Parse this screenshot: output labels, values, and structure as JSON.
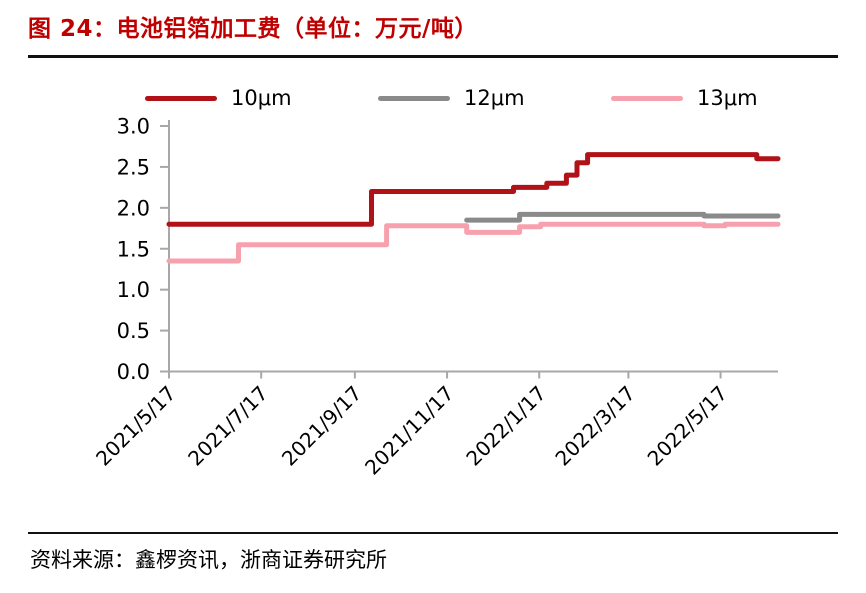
{
  "header": {
    "title": "图 24：电池铝箔加工费（单位：万元/吨）"
  },
  "footer": {
    "source": "资料来源：鑫椤资讯，浙商证券研究所"
  },
  "colors": {
    "title": "#C00000",
    "divider": "#111111",
    "axis": "#A8A8A8",
    "text": "#000000",
    "series_10um": "#B01218",
    "series_12um": "#8A8A8A",
    "series_13um": "#F8A1AE"
  },
  "chart_data": {
    "type": "line",
    "step": true,
    "title": "电池铝箔加工费",
    "unit": "万元/吨",
    "grid": false,
    "legend_position": "top",
    "ylim": [
      0.0,
      3.0
    ],
    "y_ticks": [
      "3.0",
      "2.5",
      "2.0",
      "1.5",
      "1.0",
      "0.5",
      "0.0"
    ],
    "x_domain": [
      "2021/5/17",
      "2022/6/24"
    ],
    "x_ticks": [
      "2021/5/17",
      "2021/7/17",
      "2021/9/17",
      "2021/11/17",
      "2022/1/17",
      "2022/3/17",
      "2022/5/17"
    ],
    "series": [
      {
        "name": "10μm",
        "key": "10um",
        "color": "#B01218",
        "points": [
          [
            "2021/5/17",
            1.8
          ],
          [
            "2021/9/28",
            2.2
          ],
          [
            "2021/12/31",
            2.25
          ],
          [
            "2022/1/22",
            2.3
          ],
          [
            "2022/2/4",
            2.4
          ],
          [
            "2022/2/11",
            2.55
          ],
          [
            "2022/2/18",
            2.65
          ],
          [
            "2022/6/10",
            2.6
          ],
          [
            "2022/6/24",
            2.6
          ]
        ]
      },
      {
        "name": "12μm",
        "key": "12um",
        "color": "#8A8A8A",
        "points": [
          [
            "2021/11/30",
            1.85
          ],
          [
            "2022/1/4",
            1.92
          ],
          [
            "2022/5/6",
            1.9
          ],
          [
            "2022/6/24",
            1.9
          ]
        ]
      },
      {
        "name": "13μm",
        "key": "13um",
        "color": "#F8A1AE",
        "points": [
          [
            "2021/5/17",
            1.35
          ],
          [
            "2021/7/2",
            1.55
          ],
          [
            "2021/10/8",
            1.78
          ],
          [
            "2021/11/30",
            1.7
          ],
          [
            "2022/1/4",
            1.77
          ],
          [
            "2022/1/18",
            1.8
          ],
          [
            "2022/5/6",
            1.78
          ],
          [
            "2022/5/20",
            1.8
          ],
          [
            "2022/6/24",
            1.8
          ]
        ]
      }
    ]
  }
}
